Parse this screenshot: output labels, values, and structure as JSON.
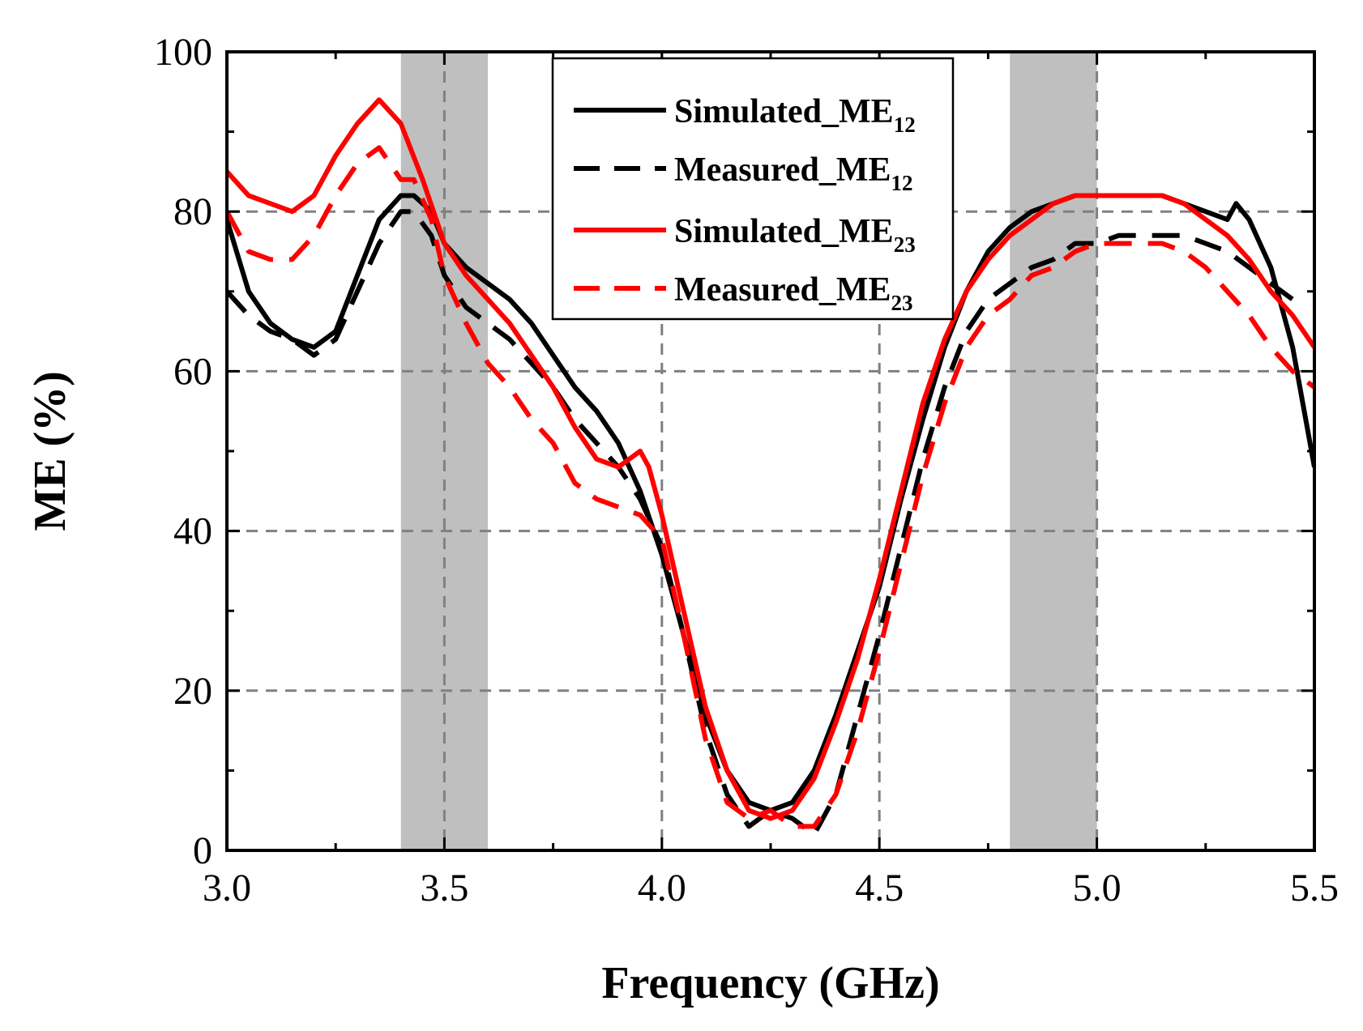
{
  "chart_data": {
    "type": "line",
    "title": "",
    "xlabel": "Frequency (GHz)",
    "ylabel": "ME (%)",
    "xlim": [
      3.0,
      5.5
    ],
    "ylim": [
      0,
      100
    ],
    "xticks": [
      3.0,
      3.5,
      4.0,
      4.5,
      5.0,
      5.5
    ],
    "xtick_labels": [
      "3.0",
      "3.5",
      "4.0",
      "4.5",
      "5.0",
      "5.5"
    ],
    "yticks": [
      0,
      20,
      40,
      60,
      80,
      100
    ],
    "ytick_labels": [
      "0",
      "20",
      "40",
      "60",
      "80",
      "100"
    ],
    "grid": "dashed",
    "legend_position": "top-center",
    "shaded_bands": [
      {
        "x0": 3.4,
        "x1": 3.6,
        "color": "#bfbfbf"
      },
      {
        "x0": 4.8,
        "x1": 5.0,
        "color": "#bfbfbf"
      }
    ],
    "series": [
      {
        "name": "Simulated_ME",
        "subscript": "12",
        "color": "#000000",
        "dash": "solid",
        "x": [
          3.0,
          3.05,
          3.1,
          3.15,
          3.2,
          3.25,
          3.3,
          3.35,
          3.4,
          3.43,
          3.47,
          3.5,
          3.55,
          3.6,
          3.65,
          3.7,
          3.75,
          3.8,
          3.85,
          3.9,
          3.95,
          4.0,
          4.05,
          4.1,
          4.15,
          4.2,
          4.25,
          4.3,
          4.35,
          4.4,
          4.45,
          4.5,
          4.55,
          4.6,
          4.65,
          4.7,
          4.75,
          4.8,
          4.85,
          4.9,
          4.95,
          5.0,
          5.05,
          5.1,
          5.15,
          5.2,
          5.25,
          5.3,
          5.32,
          5.35,
          5.4,
          5.45,
          5.5
        ],
        "values": [
          79,
          70,
          66,
          64,
          63,
          65,
          72,
          79,
          82,
          82,
          80,
          76,
          73,
          71,
          69,
          66,
          62,
          58,
          55,
          51,
          45,
          37,
          27,
          17,
          10,
          6,
          5,
          6,
          10,
          17,
          25,
          33,
          44,
          54,
          63,
          70,
          75,
          78,
          80,
          81,
          82,
          82,
          82,
          82,
          82,
          81,
          80,
          79,
          81,
          79,
          73,
          63,
          48
        ]
      },
      {
        "name": "Measured_ME",
        "subscript": "12",
        "color": "#000000",
        "dash": "dashed",
        "x": [
          3.0,
          3.05,
          3.1,
          3.15,
          3.2,
          3.25,
          3.3,
          3.35,
          3.4,
          3.43,
          3.47,
          3.5,
          3.55,
          3.6,
          3.65,
          3.7,
          3.75,
          3.8,
          3.85,
          3.9,
          3.95,
          4.0,
          4.05,
          4.1,
          4.15,
          4.2,
          4.25,
          4.3,
          4.35,
          4.4,
          4.45,
          4.5,
          4.55,
          4.6,
          4.65,
          4.7,
          4.75,
          4.8,
          4.85,
          4.9,
          4.95,
          5.0,
          5.05,
          5.1,
          5.15,
          5.2,
          5.25,
          5.3,
          5.35,
          5.4,
          5.45
        ],
        "values": [
          70,
          67,
          65,
          64,
          62,
          64,
          70,
          76,
          80,
          80,
          77,
          72,
          68,
          66,
          64,
          61,
          58,
          54,
          51,
          48,
          44,
          38,
          27,
          15,
          7,
          3,
          5,
          4,
          2,
          7,
          17,
          27,
          38,
          49,
          58,
          65,
          69,
          71,
          73,
          74,
          76,
          76,
          77,
          77,
          77,
          77,
          76,
          75,
          73,
          71,
          69
        ]
      },
      {
        "name": "Simulated_ME",
        "subscript": "23",
        "color": "#ff0000",
        "dash": "solid",
        "x": [
          3.0,
          3.05,
          3.1,
          3.15,
          3.2,
          3.25,
          3.3,
          3.35,
          3.4,
          3.45,
          3.5,
          3.55,
          3.6,
          3.65,
          3.7,
          3.75,
          3.8,
          3.85,
          3.9,
          3.95,
          3.97,
          4.0,
          4.05,
          4.1,
          4.15,
          4.2,
          4.25,
          4.3,
          4.35,
          4.4,
          4.45,
          4.5,
          4.55,
          4.6,
          4.65,
          4.7,
          4.75,
          4.8,
          4.85,
          4.9,
          4.95,
          5.0,
          5.05,
          5.1,
          5.15,
          5.2,
          5.25,
          5.3,
          5.35,
          5.4,
          5.45,
          5.5
        ],
        "values": [
          85,
          82,
          81,
          80,
          82,
          87,
          91,
          94,
          91,
          84,
          76,
          72,
          69,
          66,
          62,
          58,
          53,
          49,
          48,
          50,
          48,
          42,
          30,
          18,
          10,
          5,
          4,
          5,
          9,
          16,
          24,
          34,
          45,
          56,
          64,
          70,
          74,
          77,
          79,
          81,
          82,
          82,
          82,
          82,
          82,
          81,
          79,
          77,
          74,
          70,
          67,
          63
        ]
      },
      {
        "name": "Measured_ME",
        "subscript": "23",
        "color": "#ff0000",
        "dash": "dashed",
        "x": [
          3.0,
          3.05,
          3.1,
          3.15,
          3.2,
          3.25,
          3.3,
          3.35,
          3.4,
          3.43,
          3.47,
          3.5,
          3.55,
          3.6,
          3.65,
          3.7,
          3.75,
          3.8,
          3.85,
          3.9,
          3.95,
          4.0,
          4.05,
          4.1,
          4.15,
          4.2,
          4.25,
          4.3,
          4.35,
          4.4,
          4.45,
          4.5,
          4.55,
          4.6,
          4.65,
          4.7,
          4.75,
          4.8,
          4.85,
          4.9,
          4.95,
          5.0,
          5.05,
          5.1,
          5.15,
          5.2,
          5.25,
          5.3,
          5.35,
          5.4,
          5.45,
          5.5
        ],
        "values": [
          80,
          75,
          74,
          74,
          77,
          82,
          86,
          88,
          84,
          84,
          79,
          72,
          66,
          61,
          58,
          54,
          51,
          46,
          44,
          43,
          42,
          39,
          27,
          14,
          6,
          4,
          5,
          3,
          3,
          7,
          15,
          25,
          36,
          47,
          56,
          63,
          67,
          69,
          72,
          73,
          75,
          76,
          76,
          76,
          76,
          75,
          73,
          70,
          67,
          63,
          60,
          58
        ]
      }
    ]
  }
}
